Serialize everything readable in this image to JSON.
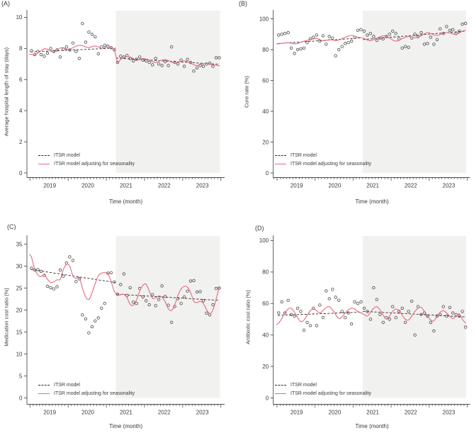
{
  "legend": {
    "itsr": "ITSR model",
    "seasonal": "ITSR model adjusting for seasonality"
  },
  "colors": {
    "seasonal_line": "#e8697d",
    "itsr_line": "#2b2b2b",
    "point_stroke": "#4a4a4a",
    "shade": "#f1f1ef",
    "axis": "#4d4d4d",
    "text": "#3a3a3a"
  },
  "time_axis": {
    "x_start": "2019-01",
    "n_months": 60,
    "year_labels": [
      "2019",
      "2020",
      "2021",
      "2022",
      "2023"
    ],
    "intervention_month": "2021-04",
    "intervention_index": 27,
    "shaded_region": "2021-04 to 2023-12"
  },
  "chart_data": [
    {
      "type": "scatter",
      "panel_label": "(A)",
      "ylabel": "Average hospital length of stay (days)",
      "xlabel": "Time (month)",
      "ylim": [
        0,
        10
      ],
      "yticks": [
        0,
        2,
        4,
        6,
        8,
        10
      ],
      "xticks": [
        "2019",
        "2020",
        "2021",
        "2022",
        "2023"
      ],
      "intervention_index": 27,
      "scatter": [
        7.85,
        7.6,
        7.8,
        7.6,
        7.5,
        7.7,
        8.0,
        7.8,
        7.9,
        7.45,
        7.95,
        8.1,
        7.9,
        8.35,
        7.8,
        7.35,
        9.6,
        8.4,
        9.05,
        8.9,
        8.75,
        7.65,
        8.1,
        8.2,
        8.15,
        8.05,
        7.9,
        7.1,
        7.5,
        7.45,
        7.55,
        7.35,
        7.2,
        7.3,
        7.45,
        7.25,
        7.2,
        7.1,
        6.95,
        7.35,
        7.0,
        6.9,
        7.15,
        6.9,
        8.1,
        7.1,
        7.0,
        7.25,
        6.85,
        7.3,
        7.1,
        6.55,
        6.75,
        6.9,
        6.85,
        7.0,
        7.05,
        6.85,
        7.4,
        7.4
      ],
      "seasonal_fit": [
        7.62,
        7.58,
        7.7,
        7.85,
        7.98,
        7.95,
        7.82,
        7.78,
        7.9,
        8.02,
        8.05,
        7.95,
        7.95,
        8.05,
        8.15,
        8.2,
        8.18,
        8.1,
        8.05,
        8.12,
        8.15,
        8.1,
        8.02,
        8.05,
        8.1,
        8.05,
        7.92,
        7.12,
        7.3,
        7.42,
        7.48,
        7.45,
        7.35,
        7.25,
        7.3,
        7.35,
        7.32,
        7.25,
        7.15,
        7.1,
        7.18,
        7.25,
        7.28,
        7.22,
        7.12,
        7.05,
        7.1,
        7.18,
        7.2,
        7.15,
        7.05,
        6.95,
        6.9,
        6.95,
        7.02,
        7.05,
        7.0,
        6.95,
        6.92,
        6.88
      ],
      "itsr_fit": {
        "pre": [
          7.78,
          8.02
        ],
        "post": [
          7.38,
          6.98
        ]
      }
    },
    {
      "type": "scatter",
      "panel_label": "(B)",
      "ylabel": "Cure rate (%)",
      "xlabel": "Time (month)",
      "ylim": [
        0,
        100
      ],
      "yticks": [
        0,
        20,
        40,
        60,
        80,
        100
      ],
      "xticks": [
        "2019",
        "2020",
        "2021",
        "2022",
        "2023"
      ],
      "intervention_index": 27,
      "scatter": [
        89.5,
        90.0,
        90.5,
        91.0,
        81.0,
        77.5,
        80.0,
        80.5,
        81.0,
        84.5,
        87.0,
        88.0,
        89.5,
        85.5,
        89.0,
        83.5,
        88.5,
        87.5,
        76.0,
        80.0,
        82.0,
        84.0,
        84.5,
        85.5,
        88.0,
        92.5,
        93.0,
        92.0,
        89.5,
        90.5,
        88.5,
        86.0,
        87.5,
        87.0,
        88.5,
        90.0,
        92.0,
        90.5,
        87.0,
        81.0,
        82.0,
        81.5,
        87.5,
        90.0,
        88.5,
        91.0,
        83.5,
        84.0,
        88.0,
        83.5,
        86.5,
        93.5,
        90.5,
        95.0,
        92.5,
        93.0,
        90.5,
        92.0,
        96.5,
        97.0
      ],
      "seasonal_fit": [
        83.8,
        84.0,
        84.3,
        84.5,
        84.2,
        83.8,
        84.0,
        84.8,
        85.5,
        86.0,
        86.5,
        87.0,
        87.2,
        86.5,
        85.8,
        86.0,
        86.5,
        86.2,
        85.8,
        86.2,
        87.0,
        88.0,
        88.8,
        89.2,
        88.8,
        88.0,
        87.8,
        87.2,
        86.2,
        85.8,
        86.5,
        87.5,
        88.2,
        89.0,
        88.5,
        87.5,
        86.2,
        85.5,
        86.0,
        87.2,
        88.0,
        88.5,
        88.2,
        87.8,
        88.2,
        89.0,
        90.2,
        91.0,
        90.5,
        89.5,
        89.2,
        89.8,
        90.5,
        91.0,
        90.8,
        90.2,
        90.0,
        90.8,
        92.0,
        92.5
      ],
      "itsr_fit": {
        "pre": [
          84.0,
          87.6
        ],
        "post": [
          86.6,
          92.0
        ]
      }
    },
    {
      "type": "scatter",
      "panel_label": "(C)",
      "ylabel": "Medication cost ratio (%)",
      "xlabel": "Time (month)",
      "ylim": [
        0,
        35
      ],
      "yticks": [
        0,
        5,
        10,
        15,
        20,
        25,
        30,
        35
      ],
      "xticks": [
        "2019",
        "2020",
        "2021",
        "2022",
        "2023"
      ],
      "intervention_index": 27,
      "scatter": [
        29.5,
        29.1,
        29.2,
        28.8,
        27.9,
        25.4,
        25.1,
        24.8,
        25.3,
        29.1,
        27.7,
        30.7,
        32.1,
        31.3,
        26.5,
        27.1,
        18.9,
        18.0,
        14.8,
        16.2,
        17.5,
        18.2,
        20.4,
        21.5,
        28.4,
        28.5,
        26.4,
        23.6,
        25.8,
        28.2,
        23.3,
        25.1,
        21.8,
        21.5,
        24.9,
        23.0,
        22.1,
        21.2,
        23.5,
        21.0,
        22.4,
        25.5,
        23.1,
        21.1,
        17.2,
        20.8,
        22.6,
        21.5,
        23.0,
        24.3,
        26.6,
        26.7,
        24.1,
        24.2,
        22.1,
        19.3,
        18.9,
        21.2,
        24.9,
        25.0
      ],
      "seasonal_fit": [
        32.0,
        29.3,
        28.0,
        27.6,
        28.1,
        27.0,
        26.3,
        26.4,
        26.9,
        27.0,
        29.2,
        30.4,
        30.0,
        27.8,
        27.2,
        27.4,
        25.0,
        23.0,
        22.4,
        23.9,
        26.0,
        27.8,
        28.4,
        28.5,
        28.3,
        26.5,
        24.3,
        23.4,
        23.5,
        23.6,
        22.8,
        21.3,
        21.1,
        22.3,
        24.3,
        25.6,
        25.9,
        24.3,
        22.7,
        22.8,
        23.2,
        22.9,
        21.9,
        20.3,
        19.9,
        21.2,
        23.3,
        24.8,
        25.4,
        25.2,
        24.0,
        22.0,
        21.7,
        22.0,
        21.5,
        20.1,
        19.2,
        20.0,
        22.5,
        25.2
      ],
      "itsr_fit": {
        "pre": [
          29.2,
          26.3
        ],
        "post": [
          23.6,
          22.2
        ]
      }
    },
    {
      "type": "scatter",
      "panel_label": "(D)",
      "ylabel": "Antibiotic cost ratio (%)",
      "xlabel": "Time (month)",
      "ylim": [
        0,
        100
      ],
      "yticks": [
        0,
        20,
        40,
        60,
        80,
        100
      ],
      "xticks": [
        "2019",
        "2020",
        "2021",
        "2022",
        "2023"
      ],
      "intervention_index": 27,
      "scatter": [
        54,
        61,
        54,
        62,
        53,
        52,
        57,
        55,
        43,
        48,
        46,
        57,
        46,
        59,
        51,
        68,
        63,
        69,
        64,
        62,
        55,
        51,
        54,
        47,
        61,
        60,
        61,
        57,
        55,
        50,
        70,
        62.5,
        53,
        48,
        51,
        50,
        58,
        51,
        55,
        57,
        48,
        55,
        61.5,
        40,
        58,
        53,
        54,
        52,
        48,
        42.5,
        52,
        53,
        58,
        52,
        57.5,
        54,
        53,
        52,
        55,
        45
      ],
      "seasonal_fit": [
        47.5,
        50.5,
        54.0,
        56.5,
        57.0,
        54.5,
        51.0,
        48.5,
        49.5,
        52.5,
        55.5,
        56.5,
        55.5,
        54.0,
        55.5,
        57.5,
        58.0,
        56.0,
        53.0,
        50.5,
        51.5,
        54.0,
        56.0,
        57.0,
        56.5,
        55.0,
        54.0,
        53.0,
        52.0,
        54.5,
        57.0,
        58.0,
        56.0,
        52.5,
        50.0,
        52.0,
        55.0,
        56.5,
        55.5,
        52.5,
        50.0,
        49.5,
        52.0,
        55.0,
        57.0,
        57.5,
        55.0,
        52.0,
        49.5,
        49.0,
        52.0,
        54.5,
        55.5,
        54.0,
        52.0,
        50.5,
        52.0,
        53.5,
        50.0,
        47.5
      ],
      "itsr_fit": {
        "pre": [
          52.5,
          54.5
        ],
        "post": [
          55.0,
          51.5
        ]
      }
    }
  ]
}
